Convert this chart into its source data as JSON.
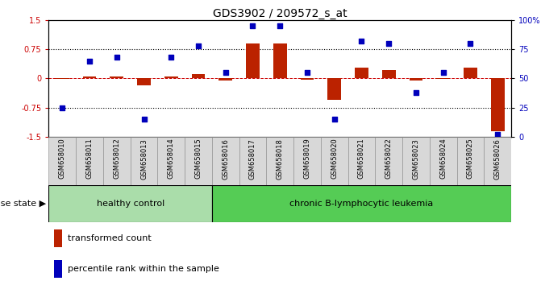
{
  "title": "GDS3902 / 209572_s_at",
  "samples": [
    "GSM658010",
    "GSM658011",
    "GSM658012",
    "GSM658013",
    "GSM658014",
    "GSM658015",
    "GSM658016",
    "GSM658017",
    "GSM658018",
    "GSM658019",
    "GSM658020",
    "GSM658021",
    "GSM658022",
    "GSM658023",
    "GSM658024",
    "GSM658025",
    "GSM658026"
  ],
  "red_bars": [
    -0.02,
    0.04,
    0.05,
    -0.18,
    0.05,
    0.12,
    -0.05,
    0.9,
    0.9,
    -0.03,
    -0.55,
    0.28,
    0.22,
    -0.06,
    -0.02,
    0.28,
    -1.35
  ],
  "blue_dots_pct": [
    25,
    65,
    68,
    15,
    68,
    78,
    55,
    95,
    95,
    55,
    15,
    82,
    80,
    38,
    55,
    80,
    2
  ],
  "group1_count": 6,
  "group1_label": "healthy control",
  "group2_label": "chronic B-lymphocytic leukemia",
  "group1_color": "#aaddaa",
  "group2_color": "#55cc55",
  "bar_color": "#bb2200",
  "dot_color": "#0000bb",
  "ylim": [
    -1.5,
    1.5
  ],
  "yticks_left": [
    -1.5,
    -0.75,
    0.0,
    0.75,
    1.5
  ],
  "ytick_labels_left": [
    "-1.5",
    "-0.75",
    "0",
    "0.75",
    "1.5"
  ],
  "yticks_right_labels": [
    "0",
    "25",
    "50",
    "75",
    "100%"
  ],
  "disease_label": "disease state",
  "legend_red": "transformed count",
  "legend_blue": "percentile rank within the sample",
  "title_fontsize": 10,
  "tick_fontsize": 7,
  "label_fontsize": 8,
  "xtick_fontsize": 6
}
